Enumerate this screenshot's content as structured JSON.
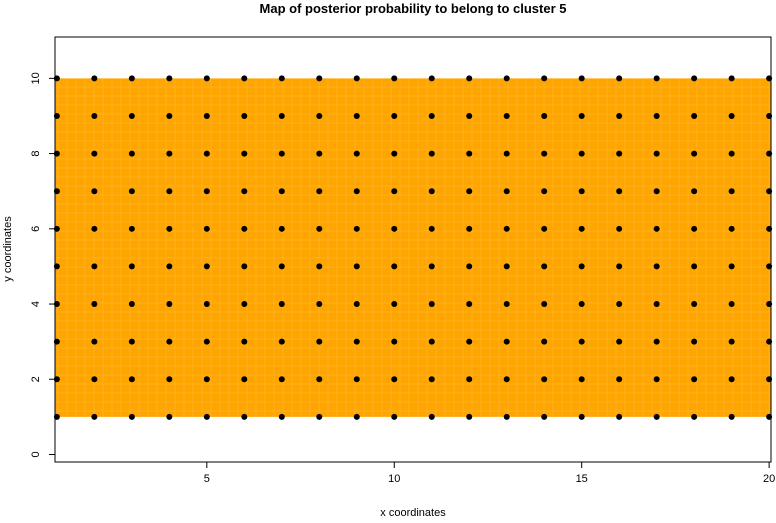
{
  "chart_data": {
    "type": "heatmap",
    "title": "Map of posterior probability to belong to cluster  5",
    "xlabel": "x coordinates",
    "ylabel": "y coordinates",
    "xlim": [
      0.95,
      20.05
    ],
    "ylim": [
      -0.2,
      11.1
    ],
    "x_ticks": [
      5,
      10,
      15,
      20
    ],
    "y_ticks": [
      0,
      2,
      4,
      6,
      8,
      10
    ],
    "grid": false,
    "fill_color": "#FFA500",
    "point_color": "#000000",
    "sites_x": [
      1,
      2,
      3,
      4,
      5,
      6,
      7,
      8,
      9,
      10,
      11,
      12,
      13,
      14,
      15,
      16,
      17,
      18,
      19,
      20
    ],
    "sites_y": [
      1,
      2,
      3,
      4,
      5,
      6,
      7,
      8,
      9,
      10
    ],
    "probability_surface": {
      "x_range": [
        1,
        20
      ],
      "y_range": [
        1,
        10
      ],
      "value": 1
    }
  }
}
